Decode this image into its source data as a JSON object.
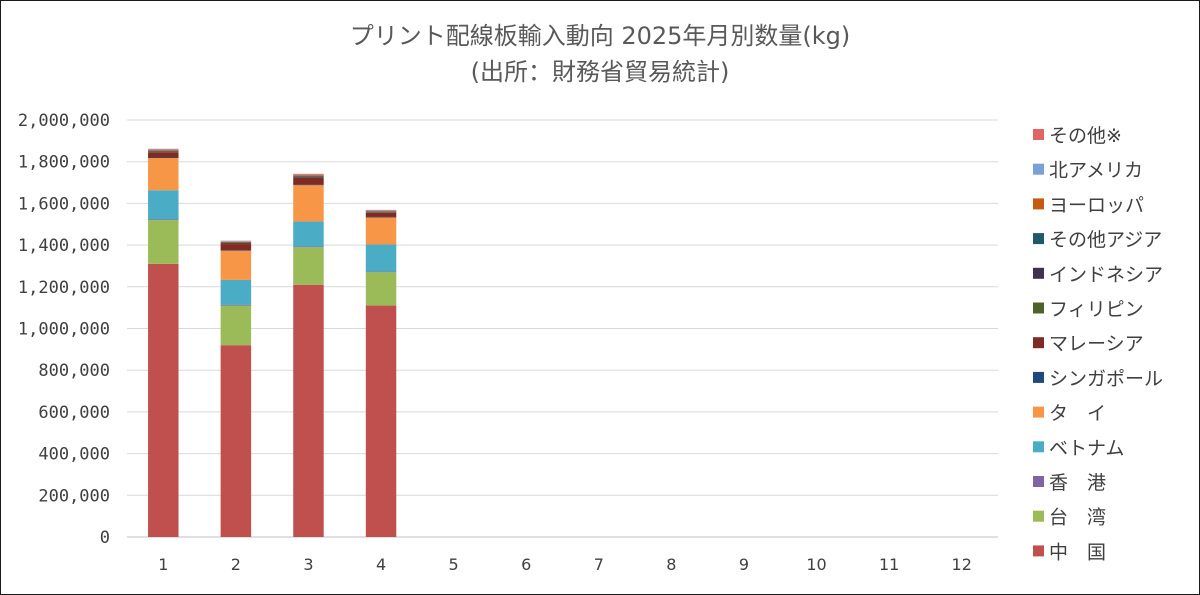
{
  "chart_data": {
    "type": "bar",
    "stacked": true,
    "title": "プリント配線板輸入動向 2025年月別数量(kg)",
    "subtitle": "(出所：財務省貿易統計)",
    "categories": [
      "1",
      "2",
      "3",
      "4",
      "5",
      "6",
      "7",
      "8",
      "9",
      "10",
      "11",
      "12"
    ],
    "ylim": [
      0,
      2000000
    ],
    "yticks": [
      0,
      200000,
      400000,
      600000,
      800000,
      1000000,
      1200000,
      1400000,
      1600000,
      1800000,
      2000000
    ],
    "ytick_labels": [
      "0",
      "200,000",
      "400,000",
      "600,000",
      "800,000",
      "1,000,000",
      "1,200,000",
      "1,400,000",
      "1,600,000",
      "1,800,000",
      "2,000,000"
    ],
    "grid": true,
    "legend_position": "right",
    "series": [
      {
        "name": "中　国",
        "color": "#c0504d",
        "values": [
          1310000,
          920000,
          1210000,
          1110000,
          null,
          null,
          null,
          null,
          null,
          null,
          null,
          null
        ]
      },
      {
        "name": "台　湾",
        "color": "#9bbb59",
        "values": [
          210000,
          190000,
          180000,
          160000,
          null,
          null,
          null,
          null,
          null,
          null,
          null,
          null
        ]
      },
      {
        "name": "香　港",
        "color": "#8064a2",
        "values": [
          3000,
          3000,
          3000,
          3000,
          null,
          null,
          null,
          null,
          null,
          null,
          null,
          null
        ]
      },
      {
        "name": "ベトナム",
        "color": "#4bacc6",
        "values": [
          140000,
          120000,
          120000,
          130000,
          null,
          null,
          null,
          null,
          null,
          null,
          null,
          null
        ]
      },
      {
        "name": "タ　イ",
        "color": "#f79646",
        "values": [
          155000,
          140000,
          175000,
          130000,
          null,
          null,
          null,
          null,
          null,
          null,
          null,
          null
        ]
      },
      {
        "name": "シンガポール",
        "color": "#1f497d",
        "values": [
          2000,
          2000,
          2000,
          2000,
          null,
          null,
          null,
          null,
          null,
          null,
          null,
          null
        ]
      },
      {
        "name": "マレーシア",
        "color": "#7f2a25",
        "values": [
          25000,
          30000,
          35000,
          20000,
          null,
          null,
          null,
          null,
          null,
          null,
          null,
          null
        ]
      },
      {
        "name": "フィリピン",
        "color": "#4f6228",
        "values": [
          3000,
          3000,
          3000,
          3000,
          null,
          null,
          null,
          null,
          null,
          null,
          null,
          null
        ]
      },
      {
        "name": "インドネシア",
        "color": "#403151",
        "values": [
          2000,
          2000,
          2000,
          2000,
          null,
          null,
          null,
          null,
          null,
          null,
          null,
          null
        ]
      },
      {
        "name": "その他アジア",
        "color": "#215968",
        "values": [
          2000,
          2000,
          2000,
          2000,
          null,
          null,
          null,
          null,
          null,
          null,
          null,
          null
        ]
      },
      {
        "name": "ヨーロッパ",
        "color": "#c55a11",
        "values": [
          4000,
          4000,
          4000,
          3000,
          null,
          null,
          null,
          null,
          null,
          null,
          null,
          null
        ]
      },
      {
        "name": "北アメリカ",
        "color": "#7aa0d4",
        "values": [
          3000,
          3000,
          3000,
          2000,
          null,
          null,
          null,
          null,
          null,
          null,
          null,
          null
        ]
      },
      {
        "name": "その他※",
        "color": "#e06666",
        "values": [
          3000,
          2000,
          3000,
          2000,
          null,
          null,
          null,
          null,
          null,
          null,
          null,
          null
        ]
      }
    ]
  }
}
